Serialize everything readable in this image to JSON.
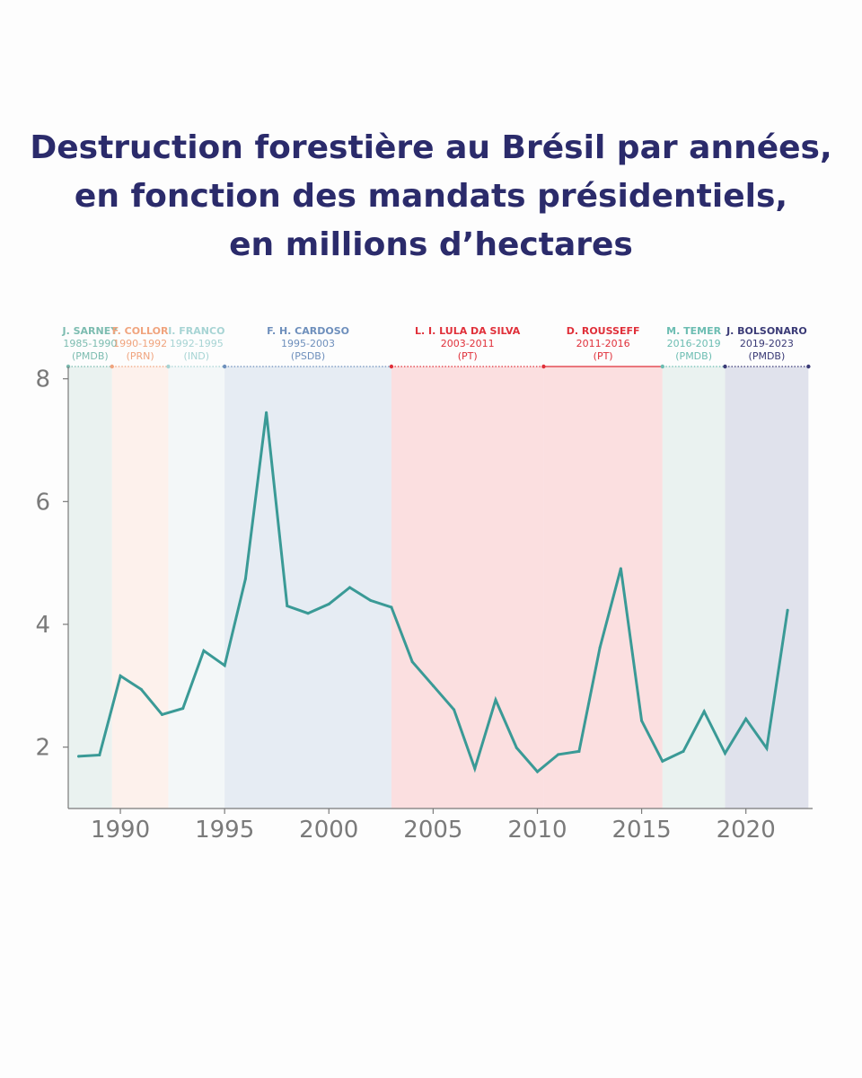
{
  "title": {
    "line1": "Destruction forestière au Brésil par années,",
    "line2": "en fonction des mandats présidentiels,",
    "line3": "en millions d’hectares"
  },
  "colors": {
    "title": "#2b2b6b",
    "line": "#3a9a96",
    "axis": "#7a7a7a"
  },
  "chart_data": {
    "type": "line",
    "title": "Destruction forestière au Brésil par années, en fonction des mandats présidentiels, en millions d’hectares",
    "xlabel": "",
    "ylabel": "",
    "xlim": [
      1987.5,
      2023.2
    ],
    "ylim": [
      1,
      8.2
    ],
    "x_ticks": [
      1990,
      1995,
      2000,
      2005,
      2010,
      2015,
      2020
    ],
    "y_ticks": [
      2,
      4,
      6,
      8
    ],
    "grid": false,
    "series": [
      {
        "x": [
          1988,
          1989,
          1990,
          1991,
          1992,
          1993,
          1994,
          1995,
          1996,
          1997,
          1998,
          1999,
          2000,
          2001,
          2002,
          2003,
          2004,
          2005,
          2006,
          2007,
          2008,
          2009,
          2010,
          2011,
          2012,
          2013,
          2014,
          2015,
          2016,
          2017,
          2018,
          2019,
          2020,
          2021,
          2022
        ],
        "values": [
          1.85,
          1.87,
          3.16,
          2.94,
          2.53,
          2.63,
          3.57,
          3.33,
          4.74,
          7.45,
          4.3,
          4.18,
          4.33,
          4.6,
          4.39,
          4.28,
          3.39,
          3.0,
          2.61,
          1.65,
          2.77,
          1.99,
          1.6,
          1.88,
          1.93,
          3.62,
          4.91,
          2.43,
          1.77,
          1.93,
          2.58,
          1.9,
          2.46,
          1.98,
          4.23
        ]
      }
    ],
    "mandates": [
      {
        "name": "J. SARNEY",
        "years": "1985-1990",
        "party": "(PMDB)",
        "start": 1987.5,
        "end": 1989.6,
        "color": "#7cbcb0",
        "bg": "#eaf2f0",
        "solid": false
      },
      {
        "name": "F. COLLOR",
        "years": "1990-1992",
        "party": "(PRN)",
        "start": 1989.6,
        "end": 1992.3,
        "color": "#f0a47e",
        "bg": "#fdf1ec",
        "solid": false
      },
      {
        "name": "I. FRANCO",
        "years": "1992-1995",
        "party": "(IND)",
        "start": 1992.3,
        "end": 1995.0,
        "color": "#a7d4d4",
        "bg": "#f3f7f8",
        "solid": false
      },
      {
        "name": "F. H. CARDOSO",
        "years": "1995-2003",
        "party": "(PSDB)",
        "start": 1995.0,
        "end": 2003.0,
        "color": "#6e8fbc",
        "bg": "#e6ecf3",
        "solid": false
      },
      {
        "name": "L. I. LULA DA SILVA",
        "years": "2003-2011",
        "party": "(PT)",
        "start": 2003.0,
        "end": 2010.3,
        "color": "#e0303a",
        "bg": "#fbdfe0",
        "solid": false
      },
      {
        "name": "D. ROUSSEFF",
        "years": "2011-2016",
        "party": "(PT)",
        "start": 2010.3,
        "end": 2016.0,
        "color": "#e0303a",
        "bg": "#fbdfe0",
        "solid": true
      },
      {
        "name": "M. TEMER",
        "years": "2016-2019",
        "party": "(PMDB)",
        "start": 2016.0,
        "end": 2019.0,
        "color": "#6cbdb2",
        "bg": "#eaf2f0",
        "solid": false
      },
      {
        "name": "J. BOLSONARO",
        "years": "2019-2023",
        "party": "(PMDB)",
        "start": 2019.0,
        "end": 2023.0,
        "color": "#3a3a76",
        "bg": "#e0e2ec",
        "solid": false
      }
    ]
  }
}
